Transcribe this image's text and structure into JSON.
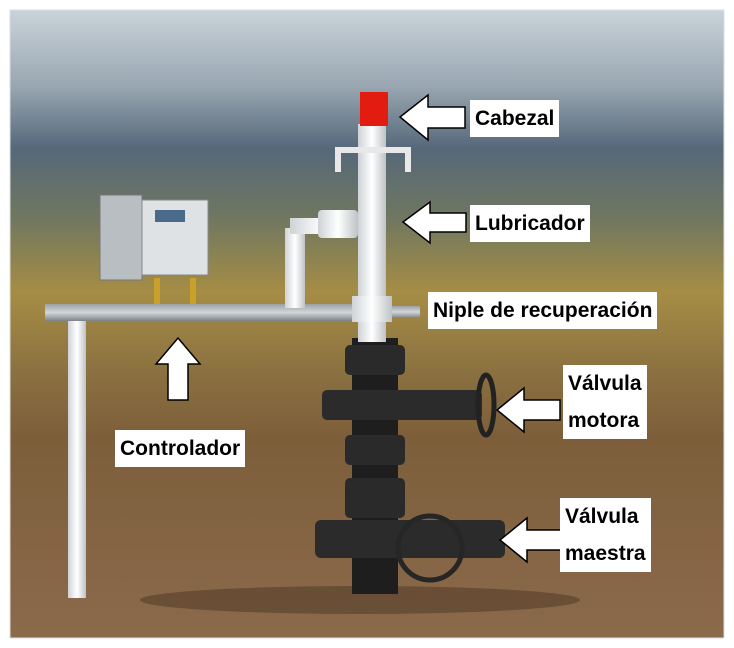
{
  "labels": [
    {
      "lines": [
        "Cabezal"
      ]
    },
    {
      "lines": [
        "Lubricador"
      ]
    },
    {
      "lines": [
        "Niple de recuperación"
      ]
    },
    {
      "lines": [
        "Válvula",
        "motora"
      ]
    },
    {
      "lines": [
        "Controlador"
      ]
    },
    {
      "lines": [
        "Válvula",
        "maestra"
      ]
    }
  ]
}
